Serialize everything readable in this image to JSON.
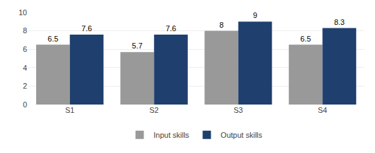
{
  "chart_data": {
    "type": "bar",
    "categories": [
      "S1",
      "S2",
      "S3",
      "S4"
    ],
    "series": [
      {
        "name": "Input skills",
        "color": "#999999",
        "values": [
          6.5,
          5.7,
          8.0,
          6.5
        ]
      },
      {
        "name": "Output skills",
        "color": "#1f3f6e",
        "values": [
          7.6,
          7.6,
          9.0,
          8.3
        ]
      }
    ],
    "ylim": [
      0,
      10
    ],
    "yticks": [
      0,
      2,
      4,
      6,
      8,
      10
    ],
    "grid": true,
    "legend": "bottom",
    "data_labels": true
  }
}
